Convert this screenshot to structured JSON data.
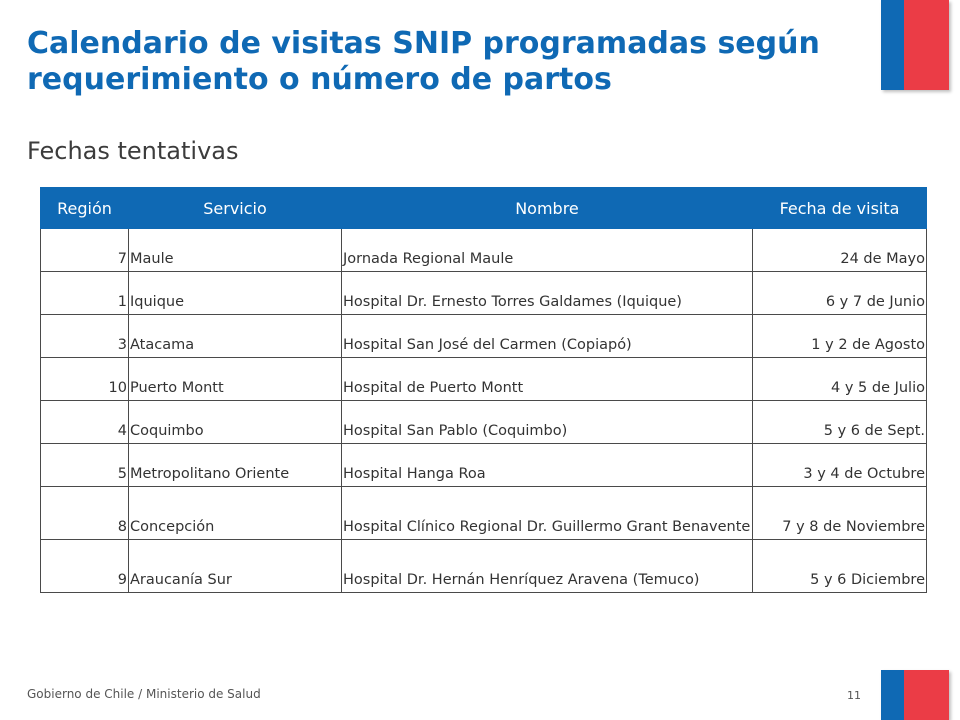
{
  "title": "Calendario de visitas SNIP programadas según requerimiento o número de partos",
  "subtitle": "Fechas tentativas",
  "table": {
    "headers": [
      "Región",
      "Servicio",
      "Nombre",
      "Fecha de visita"
    ],
    "rows": [
      {
        "region": "7",
        "servicio": "Maule",
        "nombre": "Jornada Regional Maule",
        "fecha": "24 de Mayo"
      },
      {
        "region": "1",
        "servicio": "Iquique",
        "nombre": "Hospital Dr. Ernesto Torres Galdames (Iquique)",
        "fecha": "6 y 7 de Junio"
      },
      {
        "region": "3",
        "servicio": "Atacama",
        "nombre": "Hospital San José del Carmen (Copiapó)",
        "fecha": "1 y 2 de Agosto"
      },
      {
        "region": "10",
        "servicio": "Puerto Montt",
        "nombre": "Hospital de Puerto Montt",
        "fecha": "4 y 5 de Julio"
      },
      {
        "region": "4",
        "servicio": "Coquimbo",
        "nombre": "Hospital San Pablo (Coquimbo)",
        "fecha": "5 y 6 de Sept."
      },
      {
        "region": "5",
        "servicio": "Metropolitano Oriente",
        "nombre": "Hospital Hanga Roa",
        "fecha": "3 y 4 de Octubre"
      },
      {
        "region": "8",
        "servicio": "Concepción",
        "nombre": "Hospital Clínico Regional Dr. Guillermo Grant Benavente",
        "fecha": "7 y 8 de Noviembre"
      },
      {
        "region": "9",
        "servicio": "Araucanía Sur",
        "nombre": "Hospital Dr. Hernán Henríquez Aravena (Temuco)",
        "fecha": "5 y 6 Diciembre"
      }
    ]
  },
  "footer": {
    "organization": "Gobierno de Chile / Ministerio de Salud",
    "page_number": "11"
  },
  "colors": {
    "accent_blue": "#0f69b4",
    "accent_red": "#eb3c46"
  }
}
